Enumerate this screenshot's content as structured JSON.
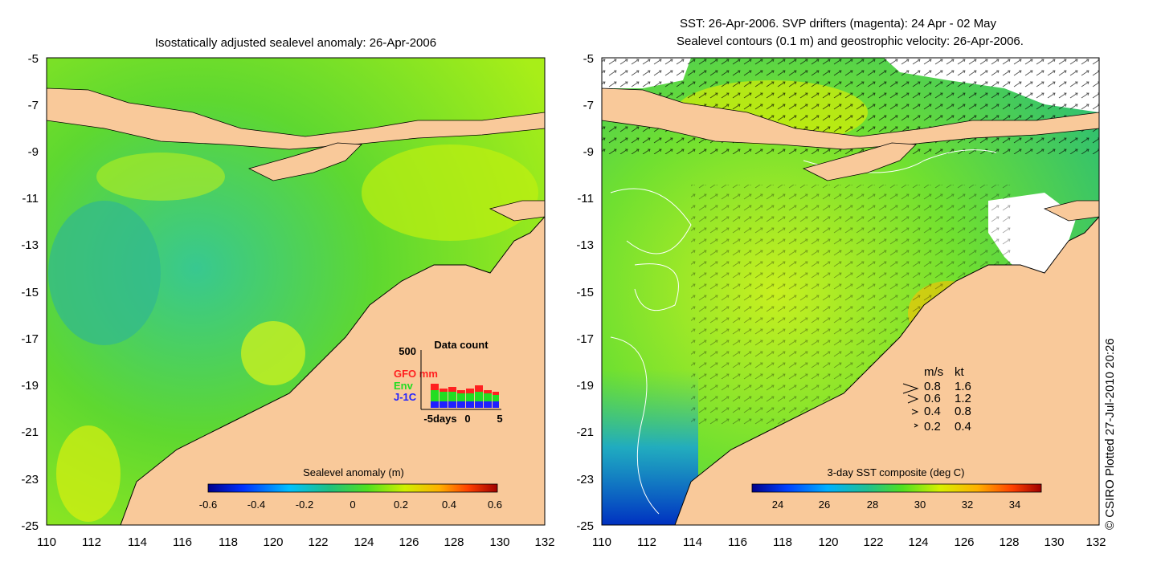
{
  "left_panel": {
    "title": "Isostatically adjusted sealevel anomaly: 26-Apr-2006",
    "y_ticks": [
      "-5",
      "-7",
      "-9",
      "-11",
      "-13",
      "-15",
      "-17",
      "-19",
      "-21",
      "-23",
      "-25"
    ],
    "x_ticks": [
      "110",
      "112",
      "114",
      "116",
      "118",
      "120",
      "122",
      "124",
      "126",
      "128",
      "130",
      "132"
    ],
    "colorbar": {
      "title": "Sealevel anomaly (m)",
      "ticks": [
        "-0.6",
        "-0.4",
        "-0.2",
        "0",
        "0.2",
        "0.4",
        "0.6"
      ]
    },
    "data_count": {
      "title": "Data count",
      "y_max_label": "500",
      "legend": [
        {
          "name": "GFO mm",
          "color": "#ff2020"
        },
        {
          "name": "Env",
          "color": "#22dd22"
        },
        {
          "name": "J-1C",
          "color": "#2020ff"
        }
      ],
      "x_labels": [
        "-5days",
        "0",
        "5"
      ]
    }
  },
  "right_panel": {
    "title_line1": "SST: 26-Apr-2006. SVP drifters (magenta): 24 Apr - 02 May",
    "title_line2": "Sealevel contours (0.1 m) and geostrophic velocity: 26-Apr-2006.",
    "y_ticks": [
      "-5",
      "-7",
      "-9",
      "-11",
      "-13",
      "-15",
      "-17",
      "-19",
      "-21",
      "-23",
      "-25"
    ],
    "x_ticks": [
      "110",
      "112",
      "114",
      "116",
      "118",
      "120",
      "122",
      "124",
      "126",
      "128",
      "130",
      "132"
    ],
    "colorbar": {
      "title": "3-day SST composite (deg C)",
      "ticks": [
        "24",
        "26",
        "28",
        "30",
        "32",
        "34"
      ]
    },
    "velocity_key": {
      "header_ms": "m/s",
      "header_kt": "kt",
      "rows": [
        {
          "ms": "0.8",
          "kt": "1.6"
        },
        {
          "ms": "0.6",
          "kt": "1.2"
        },
        {
          "ms": "0.4",
          "kt": "0.8"
        },
        {
          "ms": "0.2",
          "kt": "0.4"
        }
      ]
    }
  },
  "credit": "© CSIRO Plotted 27-Jul-2010 20:26",
  "colors": {
    "land": "#f9c99a",
    "ocean_green": "#5ee030",
    "ocean_lime": "#b8f010",
    "ocean_teal": "#40c870"
  }
}
